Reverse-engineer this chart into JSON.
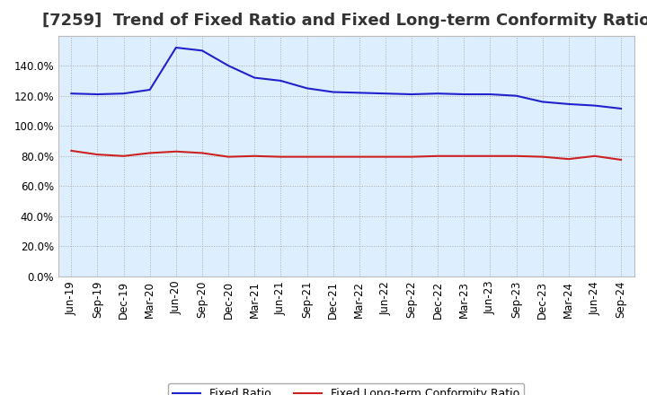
{
  "title": "[7259]  Trend of Fixed Ratio and Fixed Long-term Conformity Ratio",
  "x_labels": [
    "Jun-19",
    "Sep-19",
    "Dec-19",
    "Mar-20",
    "Jun-20",
    "Sep-20",
    "Dec-20",
    "Mar-21",
    "Jun-21",
    "Sep-21",
    "Dec-21",
    "Mar-22",
    "Jun-22",
    "Sep-22",
    "Dec-22",
    "Mar-23",
    "Jun-23",
    "Sep-23",
    "Dec-23",
    "Mar-24",
    "Jun-24",
    "Sep-24"
  ],
  "fixed_ratio": [
    121.5,
    121.0,
    121.5,
    124.0,
    152.0,
    150.0,
    140.0,
    132.0,
    130.0,
    125.0,
    122.5,
    122.0,
    121.5,
    121.0,
    121.5,
    121.0,
    121.0,
    120.0,
    116.0,
    114.5,
    113.5,
    111.5
  ],
  "fixed_lt_ratio": [
    83.5,
    81.0,
    80.0,
    82.0,
    83.0,
    82.0,
    79.5,
    80.0,
    79.5,
    79.5,
    79.5,
    79.5,
    79.5,
    79.5,
    80.0,
    80.0,
    80.0,
    80.0,
    79.5,
    78.0,
    80.0,
    77.5
  ],
  "fixed_ratio_color": "#2222cc",
  "fixed_lt_ratio_color": "#cc2222",
  "background_color": "#ffffff",
  "plot_bg_color": "#ddeeff",
  "grid_color": "#aaaaaa",
  "ylim": [
    0,
    160
  ],
  "yticks": [
    0,
    20,
    40,
    60,
    80,
    100,
    120,
    140
  ],
  "legend_fixed_ratio": "Fixed Ratio",
  "legend_fixed_lt_ratio": "Fixed Long-term Conformity Ratio",
  "title_fontsize": 13,
  "tick_fontsize": 8.5,
  "legend_fontsize": 9
}
